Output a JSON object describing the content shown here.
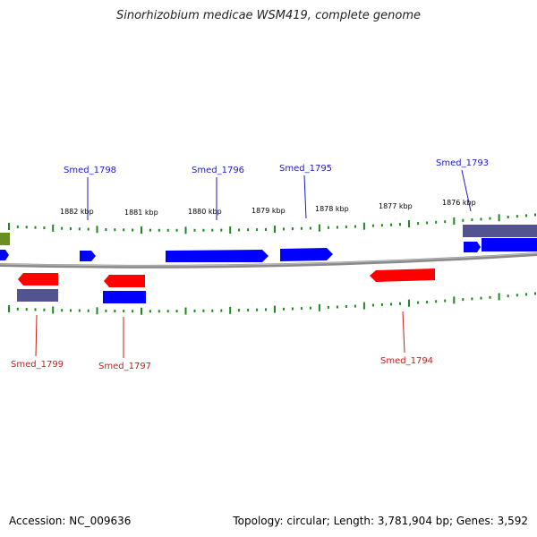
{
  "title": "Sinorhizobium medicae WSM419, complete genome",
  "footer": {
    "accession": "Accession: NC_009636",
    "summary": "Topology: circular; Length: 3,781,904 bp; Genes: 3,592"
  },
  "colors": {
    "forward_gene": "#0000ff",
    "reverse_gene": "#ff0000",
    "cds_dark": "#4a4a8c",
    "tick": "#1a8a1a",
    "backbone": "#8a8a8a",
    "forward_label": "#1a1acc",
    "reverse_label": "#cc1a1a",
    "olive_block": "#6b8e23"
  },
  "scale_labels": [
    "1882 kbp",
    "1881 kbp",
    "1880 kbp",
    "1879 kbp",
    "1878 kbp",
    "1877 kbp",
    "1876 kbp"
  ],
  "gene_labels": {
    "forward": [
      "Smed_1798",
      "Smed_1796",
      "Smed_1795",
      "Smed_1793"
    ],
    "reverse": [
      "Smed_1799",
      "Smed_1797",
      "Smed_1794"
    ]
  }
}
